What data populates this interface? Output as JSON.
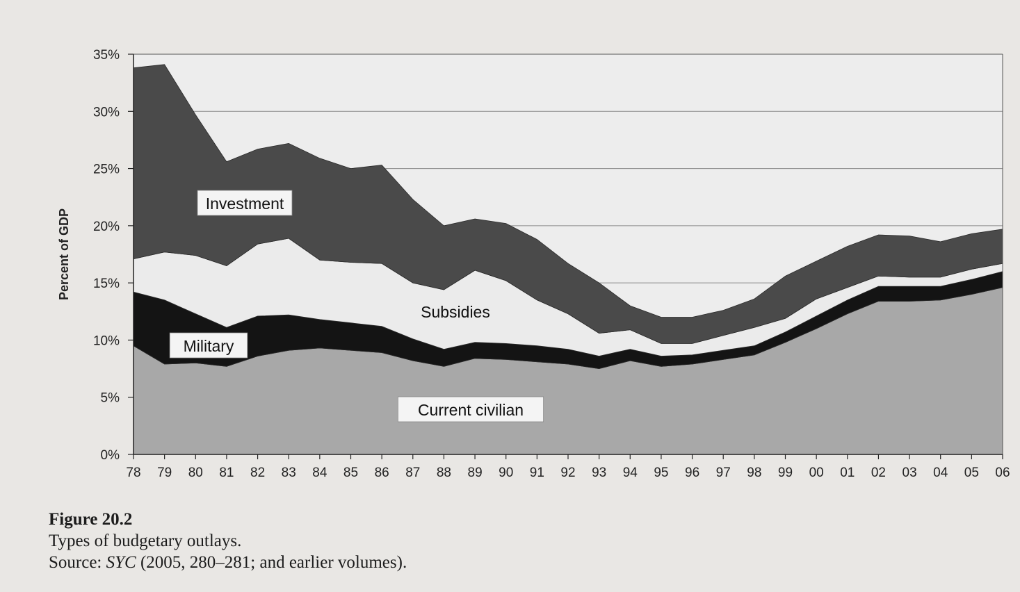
{
  "chart_data": {
    "type": "area",
    "stacked": true,
    "ylabel": "Percent of GDP",
    "xlabel": "",
    "ylim": [
      0,
      35
    ],
    "y_ticks": [
      "0%",
      "5%",
      "10%",
      "15%",
      "20%",
      "25%",
      "30%",
      "35%"
    ],
    "categories": [
      "78",
      "79",
      "80",
      "81",
      "82",
      "83",
      "84",
      "85",
      "86",
      "87",
      "88",
      "89",
      "90",
      "91",
      "92",
      "93",
      "94",
      "95",
      "96",
      "97",
      "98",
      "99",
      "00",
      "01",
      "02",
      "03",
      "04",
      "05",
      "06"
    ],
    "series": [
      {
        "name": "Current civilian",
        "color": "#a8a8a8",
        "values": [
          9.5,
          7.9,
          8.0,
          7.7,
          8.6,
          9.1,
          9.3,
          9.1,
          8.9,
          8.2,
          7.7,
          8.4,
          8.3,
          8.1,
          7.9,
          7.5,
          8.2,
          7.7,
          7.9,
          8.3,
          8.7,
          9.8,
          11.0,
          12.3,
          13.4,
          13.4,
          13.5,
          14.0,
          14.6
        ]
      },
      {
        "name": "Military",
        "color": "#141414",
        "values": [
          4.7,
          5.6,
          4.3,
          3.4,
          3.5,
          3.1,
          2.5,
          2.4,
          2.3,
          1.9,
          1.5,
          1.4,
          1.4,
          1.4,
          1.3,
          1.1,
          1.0,
          0.9,
          0.8,
          0.8,
          0.8,
          0.9,
          1.1,
          1.2,
          1.3,
          1.3,
          1.2,
          1.3,
          1.4
        ]
      },
      {
        "name": "Subsidies",
        "color": "#ebebeb",
        "values": [
          2.9,
          4.2,
          5.1,
          5.4,
          6.3,
          6.7,
          5.2,
          5.3,
          5.5,
          4.9,
          5.2,
          6.3,
          5.5,
          4.0,
          3.1,
          2.0,
          1.7,
          1.1,
          1.0,
          1.3,
          1.6,
          1.2,
          1.5,
          1.1,
          0.9,
          0.8,
          0.8,
          0.9,
          0.7
        ]
      },
      {
        "name": "Investment",
        "color": "#4a4a4a",
        "values": [
          16.7,
          16.4,
          12.3,
          9.1,
          8.3,
          8.3,
          8.9,
          8.2,
          8.6,
          7.3,
          5.6,
          4.5,
          5.0,
          5.3,
          4.4,
          4.4,
          2.1,
          2.3,
          2.3,
          2.2,
          2.5,
          3.7,
          3.3,
          3.6,
          3.6,
          3.6,
          3.1,
          3.1,
          3.0
        ]
      }
    ],
    "series_labels": [
      "Investment",
      "Subsidies",
      "Military",
      "Current civilian"
    ]
  },
  "caption": {
    "figure_label": "Figure 20.2",
    "title": "Types of budgetary outlays.",
    "source_prefix": "Source: ",
    "source_italic": "SYC",
    "source_rest": " (2005, 280–281; and earlier volumes)."
  }
}
